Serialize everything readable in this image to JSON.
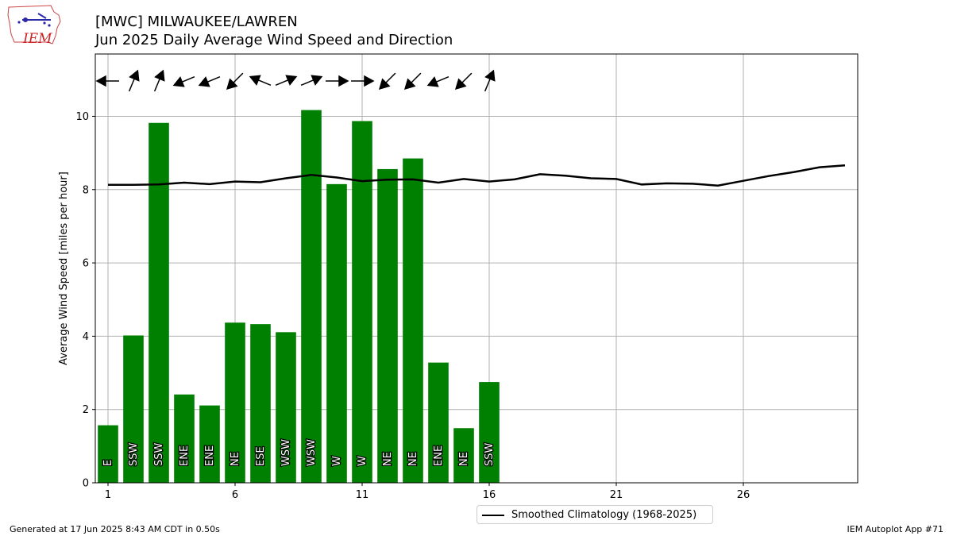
{
  "header": {
    "title_line1": "[MWC] MILWAUKEE/LAWREN",
    "title_line2": "Jun 2025 Daily Average Wind Speed and Direction",
    "logo_text": "IEM"
  },
  "footer": {
    "generated": "Generated at 17 Jun 2025 8:43 AM CDT in 0.50s",
    "app": "IEM Autoplot App #71"
  },
  "legend": {
    "label": "Smoothed Climatology (1968-2025)"
  },
  "chart_data": {
    "type": "bar",
    "ylabel": "Average Wind Speed [miles per hour]",
    "xlabel": "",
    "xlim": [
      0.5,
      30.5
    ],
    "ylim": [
      0,
      11.7
    ],
    "grid": true,
    "legend_position": "bottom-center",
    "x_ticks": [
      1,
      6,
      11,
      16,
      21,
      26
    ],
    "y_ticks": [
      0,
      2,
      4,
      6,
      8,
      10
    ],
    "colors": {
      "bars": "#008000",
      "climatology": "#000000",
      "grid": "#b0b0b0"
    },
    "days": [
      1,
      2,
      3,
      4,
      5,
      6,
      7,
      8,
      9,
      10,
      11,
      12,
      13,
      14,
      15,
      16
    ],
    "values": [
      1.57,
      4.02,
      9.82,
      2.41,
      2.11,
      4.37,
      4.33,
      4.11,
      10.17,
      8.15,
      9.87,
      8.56,
      8.85,
      3.28,
      1.49,
      2.75
    ],
    "directions": [
      "E",
      "SSW",
      "SSW",
      "ENE",
      "ENE",
      "NE",
      "ESE",
      "WSW",
      "WSW",
      "W",
      "W",
      "NE",
      "NE",
      "ENE",
      "NE",
      "SSW"
    ],
    "climatology": {
      "name": "Smoothed Climatology (1968-2025)",
      "x": [
        1,
        2,
        3,
        4,
        5,
        6,
        7,
        8,
        9,
        10,
        11,
        12,
        13,
        14,
        15,
        16,
        17,
        18,
        19,
        20,
        21,
        22,
        23,
        24,
        25,
        26,
        27,
        28,
        29,
        30
      ],
      "y": [
        8.13,
        8.13,
        8.14,
        8.19,
        8.15,
        8.22,
        8.2,
        8.31,
        8.4,
        8.33,
        8.23,
        8.27,
        8.28,
        8.19,
        8.29,
        8.22,
        8.28,
        8.42,
        8.38,
        8.31,
        8.29,
        8.14,
        8.17,
        8.16,
        8.11,
        8.24,
        8.37,
        8.48,
        8.61,
        8.66
      ]
    }
  }
}
